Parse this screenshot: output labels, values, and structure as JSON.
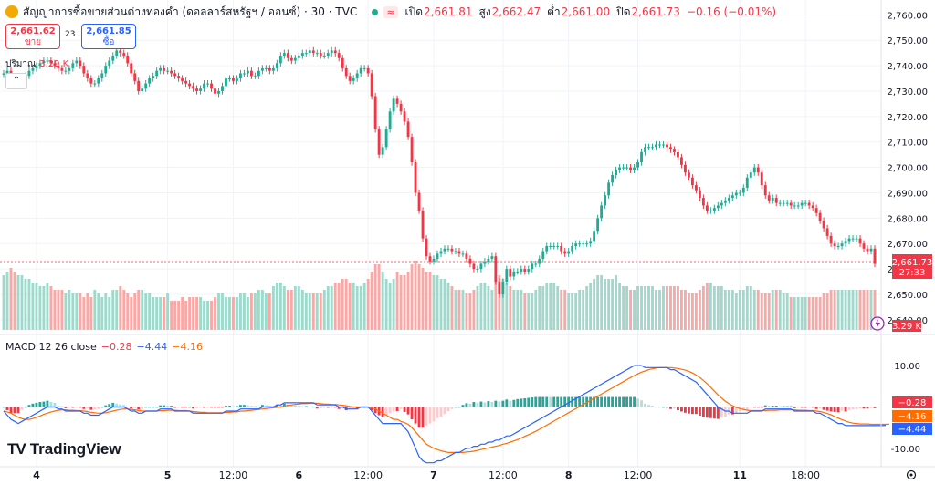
{
  "header": {
    "title": "สัญญาการซื้อขายส่วนต่างทองคำ (ดอลลาร์สหรัฐฯ / ออนซ์) · 30 · TVC",
    "open_label": "เปิด",
    "open": "2,661.81",
    "high_label": "สูง",
    "high": "2,662.47",
    "low_label": "ต่ำ",
    "low": "2,661.00",
    "close_label": "ปิด",
    "close": "2,661.73",
    "change": "−0.16 (−0.01%)",
    "wave": "≈"
  },
  "trade": {
    "sell_price": "2,661.62",
    "sell_label": "ขาย",
    "spread": "23",
    "buy_price": "2,661.85",
    "buy_label": "ซื้อ"
  },
  "volume": {
    "label": "ปริมาณ",
    "value": "3.29 K"
  },
  "collapse_icon": "chevron-up-icon",
  "macd": {
    "label": "MACD 12 26 close",
    "hist": "−0.28",
    "macd": "−4.44",
    "signal": "−4.16"
  },
  "brand": {
    "logo": "TV",
    "name": "TradingView"
  },
  "price_tag": {
    "price": "2,661.73",
    "countdown": "27:33"
  },
  "vol_tag": "3.29 K",
  "settings_icon": "gear-icon",
  "colors": {
    "up": "#22ab94",
    "down": "#f23645",
    "vol_up": "#9fd9cb",
    "vol_down": "#f7a9a7",
    "macd": "#2962ff",
    "signal": "#ff6d00",
    "grid": "#f0f3fa"
  },
  "chart_data": [
    {
      "type": "candlestick",
      "title": "สัญญาการซื้อขายส่วนต่างทองคำ (ดอลลาร์สหรัฐฯ / ออนซ์) · 30 · TVC",
      "x_ticks": [
        {
          "label": "4",
          "index": 9
        },
        {
          "label": "5",
          "index": 45
        },
        {
          "label": "12:00",
          "index": 63
        },
        {
          "label": "6",
          "index": 81
        },
        {
          "label": "12:00",
          "index": 100
        },
        {
          "label": "7",
          "index": 118
        },
        {
          "label": "12:00",
          "index": 137
        },
        {
          "label": "8",
          "index": 155
        },
        {
          "label": "12:00",
          "index": 174
        },
        {
          "label": "11",
          "index": 202
        },
        {
          "label": "18:00",
          "index": 220
        }
      ],
      "y_ticks": [
        "2,640.00",
        "2,650.00",
        "2,660.00",
        "2,670.00",
        "2,680.00",
        "2,690.00",
        "2,700.00",
        "2,710.00",
        "2,720.00",
        "2,730.00",
        "2,740.00",
        "2,750.00",
        "2,760.00"
      ],
      "ylim": [
        2636,
        2763
      ],
      "close": [
        2737,
        2738,
        2735,
        2733,
        2734,
        2735,
        2736,
        2738,
        2739,
        2740,
        2741,
        2742,
        2742,
        2741,
        2740,
        2739,
        2738,
        2738,
        2739,
        2741,
        2742,
        2740,
        2737,
        2735,
        2733,
        2733,
        2735,
        2737,
        2740,
        2742,
        2744,
        2746,
        2745,
        2744,
        2741,
        2737,
        2734,
        2730,
        2731,
        2733,
        2735,
        2736,
        2738,
        2739,
        2738,
        2738,
        2737,
        2736,
        2735,
        2734,
        2733,
        2732,
        2731,
        2730,
        2731,
        2733,
        2733,
        2731,
        2729,
        2730,
        2732,
        2735,
        2735,
        2734,
        2735,
        2737,
        2737,
        2738,
        2736,
        2736,
        2738,
        2739,
        2739,
        2738,
        2739,
        2741,
        2744,
        2745,
        2743,
        2742,
        2743,
        2744,
        2745,
        2745,
        2746,
        2745,
        2745,
        2744,
        2744,
        2745,
        2746,
        2745,
        2743,
        2739,
        2736,
        2734,
        2735,
        2737,
        2739,
        2739,
        2737,
        2728,
        2715,
        2705,
        2708,
        2715,
        2722,
        2727,
        2725,
        2722,
        2718,
        2712,
        2702,
        2690,
        2683,
        2672,
        2665,
        2663,
        2664,
        2666,
        2667,
        2668,
        2668,
        2667,
        2667,
        2666,
        2666,
        2664,
        2662,
        2660,
        2660,
        2662,
        2663,
        2664,
        2665,
        2655,
        2650,
        2655,
        2660,
        2657,
        2659,
        2659,
        2660,
        2659,
        2660,
        2662,
        2662,
        2664,
        2667,
        2669,
        2669,
        2669,
        2669,
        2667,
        2666,
        2667,
        2669,
        2670,
        2670,
        2670,
        2670,
        2671,
        2675,
        2680,
        2685,
        2689,
        2694,
        2697,
        2699,
        2700,
        2700,
        2700,
        2699,
        2700,
        2702,
        2706,
        2708,
        2708,
        2708,
        2709,
        2709,
        2709,
        2708,
        2707,
        2706,
        2704,
        2701,
        2698,
        2696,
        2693,
        2691,
        2688,
        2685,
        2683,
        2683,
        2684,
        2685,
        2686,
        2687,
        2688,
        2689,
        2690,
        2690,
        2692,
        2696,
        2698,
        2700,
        2698,
        2693,
        2689,
        2687,
        2688,
        2686,
        2686,
        2686,
        2686,
        2685,
        2685,
        2685,
        2686,
        2686,
        2685,
        2684,
        2682,
        2679,
        2676,
        2673,
        2670,
        2669,
        2669,
        2670,
        2671,
        2672,
        2672,
        2672,
        2670,
        2668,
        2667,
        2668,
        2662
      ]
    },
    {
      "type": "bar",
      "title": "ปริมาณ",
      "last": "3.29 K",
      "values": [
        15,
        16,
        17,
        16,
        15,
        15,
        14,
        14,
        13,
        13,
        12,
        12,
        13,
        12,
        11,
        11,
        11,
        10,
        11,
        10,
        10,
        10,
        9,
        10,
        9,
        11,
        10,
        9,
        10,
        9,
        11,
        11,
        12,
        11,
        10,
        9,
        10,
        11,
        11,
        10,
        10,
        9,
        9,
        9,
        9,
        10,
        8,
        8,
        8,
        9,
        8,
        9,
        9,
        9,
        9,
        8,
        8,
        8,
        9,
        10,
        10,
        9,
        9,
        9,
        9,
        10,
        10,
        9,
        10,
        10,
        11,
        11,
        10,
        10,
        12,
        13,
        13,
        12,
        11,
        11,
        12,
        12,
        11,
        10,
        10,
        10,
        10,
        10,
        11,
        12,
        12,
        13,
        13,
        14,
        14,
        13,
        13,
        12,
        12,
        13,
        14,
        16,
        18,
        18,
        16,
        14,
        13,
        14,
        16,
        15,
        15,
        16,
        18,
        19,
        18,
        17,
        16,
        16,
        15,
        15,
        14,
        14,
        13,
        12,
        11,
        11,
        11,
        10,
        10,
        11,
        12,
        13,
        13,
        12,
        11,
        14,
        15,
        14,
        13,
        12,
        11,
        11,
        11,
        10,
        10,
        10,
        11,
        12,
        12,
        13,
        13,
        13,
        12,
        11,
        11,
        10,
        10,
        10,
        11,
        11,
        12,
        13,
        14,
        15,
        15,
        14,
        14,
        14,
        15,
        13,
        12,
        12,
        11,
        11,
        12,
        12,
        12,
        12,
        12,
        11,
        11,
        12,
        12,
        12,
        12,
        12,
        11,
        11,
        10,
        10,
        10,
        11,
        12,
        13,
        13,
        12,
        12,
        12,
        11,
        11,
        11,
        10,
        11,
        11,
        12,
        12,
        11,
        11,
        10,
        10,
        10,
        11,
        11,
        11,
        10,
        10,
        9,
        9,
        9,
        9,
        9,
        9,
        9,
        9,
        9,
        10,
        10,
        11,
        11,
        11,
        11,
        11,
        11,
        11,
        11,
        11,
        11,
        11,
        11,
        11
      ]
    },
    {
      "type": "line",
      "title": "MACD 12 26 close",
      "ylim": [
        -14,
        12
      ],
      "y_ticks": [
        "10.00",
        "-10.00"
      ],
      "series": [
        {
          "name": "MACD",
          "values": [
            -1,
            -2,
            -3,
            -3.5,
            -4,
            -3.5,
            -3,
            -2.5,
            -2,
            -1.5,
            -1,
            -0.5,
            0,
            0,
            0,
            -0.5,
            -0.5,
            -1,
            -1,
            -1,
            -1,
            -1,
            -1.5,
            -1.5,
            -2,
            -2,
            -2,
            -1.5,
            -1,
            -0.5,
            0,
            0,
            0,
            0,
            -0.5,
            -1,
            -1,
            -1.5,
            -1.5,
            -1,
            -1,
            -1,
            -1,
            -0.5,
            -0.5,
            -0.5,
            -0.5,
            -1,
            -1,
            -1,
            -1,
            -1,
            -1.5,
            -1.5,
            -1.5,
            -1.5,
            -1.5,
            -1.5,
            -1.5,
            -1.5,
            -1.5,
            -1,
            -1,
            -1,
            -1,
            -0.5,
            -0.5,
            -0.5,
            -0.5,
            -0.5,
            -0.5,
            0,
            0,
            0,
            0,
            0.5,
            0.5,
            1,
            1,
            1,
            1,
            1,
            1,
            1,
            1,
            1,
            0.5,
            0.5,
            0.5,
            0.5,
            0.5,
            0.5,
            0,
            0,
            -0.5,
            -0.5,
            -0.5,
            -0.5,
            0,
            0,
            0,
            -1,
            -2,
            -3,
            -4,
            -4,
            -4,
            -4,
            -4,
            -4,
            -5,
            -6,
            -8,
            -10,
            -12,
            -13,
            -13.5,
            -13.5,
            -13.5,
            -13,
            -13,
            -12.5,
            -12,
            -11.5,
            -11,
            -11,
            -10.5,
            -10,
            -10,
            -9.5,
            -9.5,
            -9,
            -9,
            -8.5,
            -8.5,
            -8,
            -8,
            -7.5,
            -7,
            -7,
            -6.5,
            -6,
            -5.5,
            -5,
            -4.5,
            -4,
            -3.5,
            -3,
            -2.5,
            -2,
            -1.5,
            -1,
            -0.5,
            0,
            0.5,
            1,
            1.5,
            2,
            2.5,
            3,
            3.5,
            4,
            4.5,
            5,
            5.5,
            6,
            6.5,
            7,
            7.5,
            8,
            8.5,
            9,
            9.5,
            10,
            10,
            10,
            9.5,
            9.5,
            9.5,
            9.5,
            9.5,
            9.5,
            9.5,
            9,
            9,
            8.5,
            8,
            7.5,
            7,
            6.5,
            6,
            5,
            4,
            3,
            2,
            1,
            0,
            -0.5,
            -1,
            -1,
            -1.5,
            -1.5,
            -1.5,
            -1.5,
            -1.5,
            -1,
            -1,
            -1,
            -1,
            -0.5,
            -0.5,
            -0.5,
            -0.5,
            -0.5,
            -0.5,
            -0.5,
            -0.5,
            -1,
            -1,
            -1,
            -1,
            -1,
            -1,
            -1.5,
            -1.5,
            -2,
            -2.5,
            -3,
            -3.5,
            -4,
            -4,
            -4.5,
            -4.5,
            -4.5,
            -4.5,
            -4.5,
            -4.5,
            -4.5,
            -4.5,
            -4.5,
            -4.5,
            -4.5,
            -4.44
          ]
        },
        {
          "name": "Signal",
          "values": [
            -1,
            -1.2,
            -1.5,
            -2,
            -2.5,
            -2.8,
            -3,
            -3,
            -2.8,
            -2.5,
            -2.2,
            -1.8,
            -1.5,
            -1.2,
            -1,
            -0.8,
            -0.7,
            -0.7,
            -0.8,
            -0.8,
            -0.9,
            -0.9,
            -1,
            -1.1,
            -1.3,
            -1.4,
            -1.5,
            -1.5,
            -1.4,
            -1.2,
            -1,
            -0.8,
            -0.6,
            -0.5,
            -0.5,
            -0.6,
            -0.7,
            -0.9,
            -1,
            -1,
            -1,
            -1,
            -1,
            -0.9,
            -0.9,
            -0.8,
            -0.8,
            -0.8,
            -0.9,
            -0.9,
            -0.9,
            -1,
            -1.1,
            -1.2,
            -1.3,
            -1.3,
            -1.4,
            -1.4,
            -1.4,
            -1.4,
            -1.4,
            -1.3,
            -1.3,
            -1.2,
            -1.2,
            -1,
            -1,
            -0.9,
            -0.8,
            -0.7,
            -0.6,
            -0.5,
            -0.4,
            -0.3,
            -0.2,
            -0.1,
            0,
            0.2,
            0.4,
            0.5,
            0.6,
            0.7,
            0.8,
            0.8,
            0.9,
            0.9,
            0.9,
            0.8,
            0.7,
            0.7,
            0.6,
            0.6,
            0.5,
            0.4,
            0.3,
            0.1,
            0,
            0,
            0,
            0,
            0,
            -0.2,
            -0.5,
            -1,
            -1.5,
            -2,
            -2.5,
            -3,
            -3,
            -3.5,
            -3.8,
            -4.2,
            -5,
            -6,
            -7,
            -8,
            -9,
            -9.5,
            -10,
            -10.3,
            -10.6,
            -10.8,
            -11,
            -11,
            -11,
            -11,
            -11,
            -10.9,
            -10.8,
            -10.7,
            -10.5,
            -10.3,
            -10.1,
            -9.9,
            -9.7,
            -9.5,
            -9.3,
            -9,
            -8.8,
            -8.5,
            -8.2,
            -7.9,
            -7.5,
            -7.1,
            -6.7,
            -6.3,
            -5.9,
            -5.4,
            -4.9,
            -4.4,
            -3.9,
            -3.4,
            -2.9,
            -2.4,
            -1.9,
            -1.4,
            -0.9,
            -0.4,
            0.1,
            0.6,
            1.1,
            1.6,
            2.1,
            2.6,
            3.1,
            3.6,
            4.1,
            4.6,
            5.1,
            5.6,
            6.1,
            6.6,
            7.1,
            7.6,
            8,
            8.4,
            8.7,
            9,
            9.2,
            9.4,
            9.5,
            9.5,
            9.5,
            9.5,
            9.4,
            9.3,
            9.1,
            8.9,
            8.6,
            8.2,
            7.7,
            7.1,
            6.4,
            5.6,
            4.7,
            3.8,
            2.9,
            2.1,
            1.4,
            0.8,
            0.3,
            -0.1,
            -0.4,
            -0.6,
            -0.8,
            -0.9,
            -0.9,
            -0.9,
            -0.9,
            -0.9,
            -0.8,
            -0.8,
            -0.8,
            -0.7,
            -0.7,
            -0.7,
            -0.7,
            -0.7,
            -0.8,
            -0.8,
            -0.8,
            -0.9,
            -0.9,
            -1,
            -1.1,
            -1.3,
            -1.6,
            -1.9,
            -2.3,
            -2.7,
            -3.1,
            -3.4,
            -3.7,
            -3.9,
            -4,
            -4.1,
            -4.1,
            -4.1,
            -4.2,
            -4.2,
            -4.2,
            -4.2,
            -4.2,
            -4.16
          ]
        }
      ],
      "last_values": {
        "histogram": "−0.28",
        "macd": "−4.44",
        "signal": "−4.16"
      }
    }
  ]
}
